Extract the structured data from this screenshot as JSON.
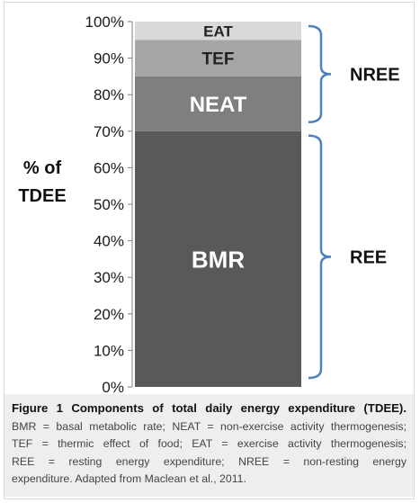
{
  "chart_data": {
    "type": "bar",
    "stacked": true,
    "categories": [
      ""
    ],
    "series": [
      {
        "name": "BMR",
        "values": [
          70
        ],
        "color": "#595959"
      },
      {
        "name": "NEAT",
        "values": [
          15
        ],
        "color": "#7f7f7f"
      },
      {
        "name": "TEF",
        "values": [
          10
        ],
        "color": "#a6a6a6"
      },
      {
        "name": "EAT",
        "values": [
          5
        ],
        "color": "#d9d9d9"
      }
    ],
    "ylabel_lines": [
      "% of",
      "TDEE"
    ],
    "ylim": [
      0,
      100
    ],
    "yticks": [
      "0%",
      "10%",
      "20%",
      "30%",
      "40%",
      "50%",
      "60%",
      "70%",
      "80%",
      "90%",
      "100%"
    ],
    "brackets": [
      {
        "label": "NREE",
        "from": 70,
        "to": 100
      },
      {
        "label": "REE",
        "from": 0,
        "to": 70
      }
    ],
    "bracket_color": "#4f81bd",
    "grid": false
  },
  "caption": {
    "title": "Figure 1 Components of total daily energy expenditure (TDEE).",
    "lines": [
      "BMR = basal metabolic rate; NEAT = non-exercise activity thermogenesis;",
      "TEF = thermic effect of food; EAT = exercise activity thermogenesis;",
      "REE = resting energy expenditure; NREE = non-resting energy",
      "expenditure. Adapted from Maclean et al., 2011."
    ]
  }
}
